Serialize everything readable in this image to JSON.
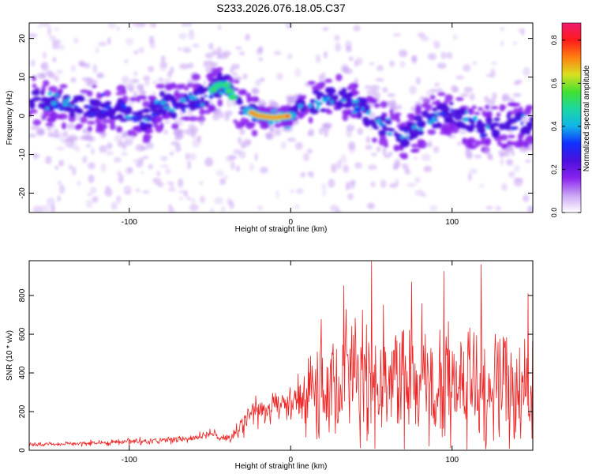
{
  "title": "S233.2026.076.18.05.C37",
  "colors": {
    "snr_line": "#ee2222",
    "spectrogram_palette": [
      "#ffffff",
      "#c9a4f3",
      "#8a22ee",
      "#4a10dd",
      "#1030ff",
      "#10b4e8",
      "#1cd7a5",
      "#40e030",
      "#d8e020",
      "#ff8010",
      "#ff1a1a",
      "#ee1a70"
    ]
  },
  "chart_data": [
    {
      "type": "heatmap",
      "title": "S233.2026.076.18.05.C37",
      "xlabel": "Height of straight line (km)",
      "ylabel": "Frequency (Hz)",
      "xlim": [
        -162,
        150
      ],
      "ylim": [
        -25,
        24
      ],
      "xticks": [
        -100,
        0,
        100
      ],
      "yticks": [
        -20,
        -10,
        0,
        10,
        20
      ],
      "grid": false,
      "ridge": {
        "x": [
          -162,
          -140,
          -120,
          -100,
          -90,
          -80,
          -70,
          -60,
          -50,
          -45,
          -40,
          -35,
          -30,
          -25,
          -20,
          -10,
          0,
          5,
          10,
          20,
          30,
          40,
          50,
          60,
          70,
          80,
          90,
          100,
          110,
          120,
          130,
          140,
          150
        ],
        "freq": [
          4,
          3,
          2,
          1,
          -1,
          3,
          2,
          4,
          6,
          8,
          8,
          4,
          2,
          1,
          0,
          -0.5,
          0,
          2,
          3,
          4,
          5,
          3,
          0,
          -3,
          -6,
          -3,
          0,
          1,
          -2,
          -3,
          -3,
          -2,
          -2
        ]
      },
      "peak_amplitude_x": [
        -20,
        0
      ],
      "colorbar": {
        "label": "Normalized spectral amplitude",
        "range": [
          0,
          0.88
        ],
        "ticks": [
          "0.0",
          "0.2",
          "0.4",
          "0.6",
          "0.8"
        ]
      }
    },
    {
      "type": "line",
      "title": "",
      "xlabel": "Height of straight line (km)",
      "ylabel": "SNR (10 * v/v)",
      "xlim": [
        -162,
        150
      ],
      "ylim": [
        0,
        980
      ],
      "xticks": [
        -100,
        0,
        100
      ],
      "yticks": [
        0,
        200,
        400,
        600,
        800
      ],
      "grid": false,
      "series": [
        {
          "name": "",
          "x": [
            -162,
            -150,
            -140,
            -130,
            -120,
            -110,
            -100,
            -90,
            -80,
            -70,
            -60,
            -55,
            -50,
            -45,
            -40,
            -35,
            -30,
            -25,
            -20,
            -15,
            -10,
            -5,
            0,
            5,
            10,
            15,
            20,
            30,
            40,
            50,
            60,
            70,
            80,
            90,
            100,
            110,
            120,
            130,
            140,
            150
          ],
          "y": [
            30,
            30,
            35,
            35,
            38,
            40,
            45,
            45,
            50,
            55,
            65,
            75,
            90,
            70,
            60,
            80,
            140,
            180,
            200,
            210,
            230,
            250,
            230,
            260,
            300,
            320,
            280,
            330,
            350,
            340,
            330,
            340,
            320,
            330,
            330,
            330,
            320,
            320,
            310,
            300
          ],
          "spread": [
            8,
            8,
            8,
            8,
            10,
            12,
            12,
            12,
            12,
            14,
            15,
            18,
            25,
            20,
            15,
            25,
            50,
            70,
            60,
            55,
            50,
            55,
            55,
            90,
            160,
            180,
            190,
            230,
            240,
            250,
            240,
            230,
            230,
            230,
            220,
            230,
            220,
            220,
            210,
            200
          ],
          "peaks": [
            {
              "x": 50,
              "y": 975
            },
            {
              "x": 95,
              "y": 925
            },
            {
              "x": 118,
              "y": 960
            },
            {
              "x": 147,
              "y": 810
            },
            {
              "x": 33,
              "y": 850
            },
            {
              "x": 75,
              "y": 870
            }
          ]
        }
      ]
    }
  ]
}
